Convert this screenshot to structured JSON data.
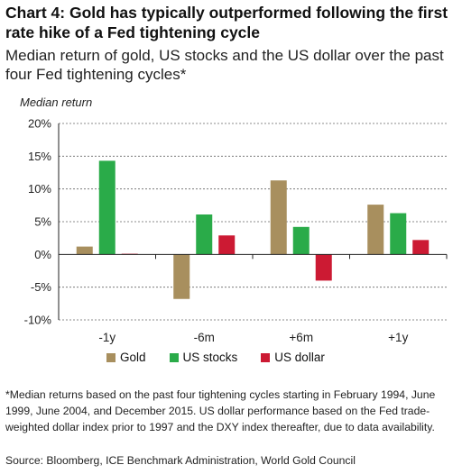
{
  "title": "Chart 4: Gold has typically outperformed following the first rate hike of a Fed tightening cycle",
  "subtitle": "Median return of gold, US stocks and the US dollar over the past four Fed tightening cycles*",
  "footnote": "*Median returns based on the past four tightening cycles starting in February 1994, June 1999, June 2004, and December 2015. US dollar performance based on the Fed trade-weighted dollar index prior to 1997 and the DXY index thereafter, due to data availability.",
  "source": "Source: Bloomberg, ICE Benchmark Administration, World Gold Council",
  "chart_data": {
    "type": "bar",
    "ylabel": "Median return",
    "categories": [
      "-1y",
      "-6m",
      "+6m",
      "+1y"
    ],
    "ylim": [
      -10,
      20
    ],
    "yticks": [
      -10,
      -5,
      0,
      5,
      10,
      15,
      20
    ],
    "ytick_labels": [
      "-10%",
      "-5%",
      "0%",
      "5%",
      "10%",
      "15%",
      "20%"
    ],
    "grid": true,
    "legend_position": "bottom",
    "series": [
      {
        "name": "Gold",
        "color": "#A88F5E",
        "values": [
          1.2,
          -6.8,
          11.3,
          7.6
        ]
      },
      {
        "name": "US stocks",
        "color": "#2AAB49",
        "values": [
          14.3,
          6.1,
          4.2,
          6.3
        ]
      },
      {
        "name": "US dollar",
        "color": "#CC1A33",
        "values": [
          0.1,
          2.9,
          -4.0,
          2.2
        ]
      }
    ]
  }
}
